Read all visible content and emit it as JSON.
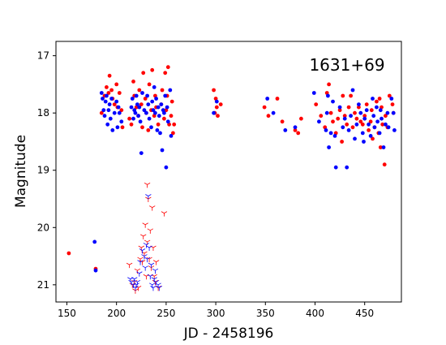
{
  "chart_data": {
    "type": "scatter",
    "title": "",
    "annotation": "1631+69",
    "xlabel": "JD - 2458196",
    "ylabel": "Magnitude",
    "xlim": [
      139,
      487
    ],
    "ylim": [
      21.3,
      16.75
    ],
    "y_inverted": true,
    "grid": false,
    "x_ticks": [
      150,
      200,
      250,
      300,
      350,
      400,
      450
    ],
    "y_ticks": [
      17,
      18,
      19,
      20,
      21
    ],
    "colors": {
      "red_series": "#ff0000",
      "blue_series": "#0000ff"
    },
    "series": [
      {
        "marker": "dot",
        "color": "#ff0000",
        "points": [
          [
            152,
            20.45
          ],
          [
            179,
            20.72
          ],
          [
            185,
            18.0
          ],
          [
            188,
            17.7
          ],
          [
            190,
            17.55
          ],
          [
            192,
            17.65
          ],
          [
            193,
            17.35
          ],
          [
            195,
            17.6
          ],
          [
            196,
            17.75
          ],
          [
            198,
            17.85
          ],
          [
            200,
            17.5
          ],
          [
            201,
            17.9
          ],
          [
            203,
            17.65
          ],
          [
            205,
            17.95
          ],
          [
            206,
            18.25
          ],
          [
            213,
            18.1
          ],
          [
            215,
            18.2
          ],
          [
            217,
            17.45
          ],
          [
            218,
            17.7
          ],
          [
            220,
            17.9
          ],
          [
            222,
            18.05
          ],
          [
            223,
            17.6
          ],
          [
            225,
            17.85
          ],
          [
            226,
            18.25
          ],
          [
            227,
            17.3
          ],
          [
            229,
            17.75
          ],
          [
            230,
            18.0
          ],
          [
            232,
            18.3
          ],
          [
            233,
            17.5
          ],
          [
            235,
            17.95
          ],
          [
            236,
            17.25
          ],
          [
            238,
            18.05
          ],
          [
            239,
            17.7
          ],
          [
            240,
            17.9
          ],
          [
            242,
            18.2
          ],
          [
            245,
            17.85
          ],
          [
            246,
            17.6
          ],
          [
            248,
            18.1
          ],
          [
            249,
            17.3
          ],
          [
            250,
            17.95
          ],
          [
            251,
            17.7
          ],
          [
            252,
            17.2
          ],
          [
            253,
            18.2
          ],
          [
            255,
            18.05
          ],
          [
            256,
            17.8
          ],
          [
            257,
            18.35
          ],
          [
            258,
            18.2
          ],
          [
            298,
            17.6
          ],
          [
            299,
            18.0
          ],
          [
            300,
            17.75
          ],
          [
            301,
            17.9
          ],
          [
            302,
            18.05
          ],
          [
            305,
            17.85
          ],
          [
            349,
            17.9
          ],
          [
            353,
            18.05
          ],
          [
            362,
            17.75
          ],
          [
            367,
            18.15
          ],
          [
            380,
            18.3
          ],
          [
            383,
            18.35
          ],
          [
            386,
            18.1
          ],
          [
            401,
            17.85
          ],
          [
            406,
            18.05
          ],
          [
            410,
            18.25
          ],
          [
            412,
            17.65
          ],
          [
            414,
            17.5
          ],
          [
            416,
            18.0
          ],
          [
            418,
            18.15
          ],
          [
            421,
            18.35
          ],
          [
            423,
            18.1
          ],
          [
            425,
            17.95
          ],
          [
            427,
            18.5
          ],
          [
            428,
            17.7
          ],
          [
            430,
            18.05
          ],
          [
            432,
            18.2
          ],
          [
            434,
            17.9
          ],
          [
            436,
            17.7
          ],
          [
            438,
            18.25
          ],
          [
            440,
            18.0
          ],
          [
            442,
            18.1
          ],
          [
            444,
            17.9
          ],
          [
            446,
            18.15
          ],
          [
            448,
            18.2
          ],
          [
            450,
            18.05
          ],
          [
            452,
            17.85
          ],
          [
            454,
            18.3
          ],
          [
            456,
            18.15
          ],
          [
            457,
            17.95
          ],
          [
            458,
            18.45
          ],
          [
            460,
            18.25
          ],
          [
            462,
            17.8
          ],
          [
            464,
            18.35
          ],
          [
            465,
            17.75
          ],
          [
            466,
            18.6
          ],
          [
            467,
            17.9
          ],
          [
            468,
            18.2
          ],
          [
            470,
            18.9
          ],
          [
            471,
            18.05
          ],
          [
            473,
            18.25
          ],
          [
            475,
            17.7
          ],
          [
            478,
            17.85
          ],
          [
            479,
            18.0
          ]
        ]
      },
      {
        "marker": "dot",
        "color": "#0000ff",
        "points": [
          [
            178,
            20.25
          ],
          [
            179,
            20.75
          ],
          [
            185,
            17.65
          ],
          [
            186,
            17.75
          ],
          [
            187,
            17.95
          ],
          [
            188,
            18.05
          ],
          [
            189,
            17.8
          ],
          [
            190,
            17.7
          ],
          [
            191,
            18.2
          ],
          [
            192,
            17.95
          ],
          [
            193,
            17.85
          ],
          [
            194,
            18.1
          ],
          [
            195,
            17.75
          ],
          [
            196,
            18.3
          ],
          [
            198,
            18.0
          ],
          [
            200,
            17.8
          ],
          [
            201,
            18.25
          ],
          [
            202,
            17.9
          ],
          [
            203,
            18.0
          ],
          [
            205,
            18.15
          ],
          [
            215,
            17.9
          ],
          [
            216,
            17.75
          ],
          [
            217,
            18.1
          ],
          [
            218,
            17.95
          ],
          [
            219,
            18.0
          ],
          [
            220,
            17.7
          ],
          [
            221,
            17.85
          ],
          [
            222,
            18.05
          ],
          [
            223,
            17.9
          ],
          [
            224,
            18.15
          ],
          [
            225,
            18.7
          ],
          [
            226,
            17.65
          ],
          [
            228,
            17.95
          ],
          [
            230,
            18.0
          ],
          [
            231,
            17.7
          ],
          [
            232,
            17.85
          ],
          [
            233,
            18.1
          ],
          [
            235,
            18.25
          ],
          [
            236,
            17.8
          ],
          [
            237,
            17.95
          ],
          [
            238,
            17.55
          ],
          [
            239,
            18.0
          ],
          [
            240,
            17.75
          ],
          [
            241,
            18.3
          ],
          [
            242,
            17.9
          ],
          [
            243,
            18.05
          ],
          [
            244,
            18.35
          ],
          [
            245,
            17.85
          ],
          [
            246,
            18.65
          ],
          [
            247,
            17.95
          ],
          [
            248,
            18.0
          ],
          [
            249,
            17.7
          ],
          [
            250,
            18.95
          ],
          [
            251,
            17.9
          ],
          [
            252,
            18.15
          ],
          [
            254,
            17.6
          ],
          [
            255,
            18.4
          ],
          [
            298,
            18.0
          ],
          [
            301,
            17.8
          ],
          [
            352,
            17.75
          ],
          [
            358,
            18.0
          ],
          [
            370,
            18.3
          ],
          [
            380,
            18.25
          ],
          [
            399,
            17.65
          ],
          [
            404,
            18.15
          ],
          [
            411,
            18.3
          ],
          [
            412,
            18.0
          ],
          [
            413,
            17.7
          ],
          [
            414,
            18.6
          ],
          [
            416,
            18.35
          ],
          [
            418,
            17.8
          ],
          [
            420,
            18.4
          ],
          [
            421,
            18.95
          ],
          [
            425,
            17.9
          ],
          [
            428,
            18.25
          ],
          [
            430,
            18.1
          ],
          [
            432,
            18.95
          ],
          [
            434,
            18.3
          ],
          [
            436,
            18.05
          ],
          [
            438,
            17.6
          ],
          [
            440,
            18.45
          ],
          [
            442,
            18.2
          ],
          [
            444,
            17.85
          ],
          [
            446,
            18.0
          ],
          [
            448,
            18.35
          ],
          [
            449,
            18.5
          ],
          [
            450,
            18.1
          ],
          [
            452,
            17.95
          ],
          [
            454,
            18.2
          ],
          [
            456,
            18.4
          ],
          [
            458,
            17.75
          ],
          [
            459,
            18.05
          ],
          [
            460,
            18.25
          ],
          [
            462,
            17.9
          ],
          [
            463,
            18.15
          ],
          [
            465,
            18.35
          ],
          [
            466,
            17.95
          ],
          [
            467,
            18.1
          ],
          [
            469,
            18.6
          ],
          [
            471,
            18.2
          ],
          [
            473,
            18.0
          ],
          [
            474,
            18.25
          ],
          [
            477,
            17.75
          ],
          [
            479,
            18.0
          ],
          [
            480,
            18.3
          ]
        ]
      },
      {
        "marker": "tri",
        "color": "#ff0000",
        "points": [
          [
            213,
            20.65
          ],
          [
            216,
            21.0
          ],
          [
            218,
            20.95
          ],
          [
            219,
            21.1
          ],
          [
            221,
            20.75
          ],
          [
            222,
            21.05
          ],
          [
            224,
            20.55
          ],
          [
            225,
            20.35
          ],
          [
            226,
            20.6
          ],
          [
            227,
            20.15
          ],
          [
            228,
            20.45
          ],
          [
            229,
            19.95
          ],
          [
            230,
            20.85
          ],
          [
            231,
            20.25
          ],
          [
            232,
            19.5
          ],
          [
            233,
            20.55
          ],
          [
            234,
            20.05
          ],
          [
            235,
            20.7
          ],
          [
            236,
            19.65
          ],
          [
            237,
            20.35
          ],
          [
            238,
            20.85
          ],
          [
            239,
            20.95
          ],
          [
            240,
            20.6
          ],
          [
            242,
            21.05
          ],
          [
            248,
            19.75
          ],
          [
            231,
            19.25
          ]
        ]
      },
      {
        "marker": "tri",
        "color": "#0000ff",
        "points": [
          [
            214,
            20.9
          ],
          [
            215,
            20.95
          ],
          [
            217,
            21.0
          ],
          [
            218,
            20.9
          ],
          [
            219,
            21.05
          ],
          [
            220,
            21.0
          ],
          [
            221,
            20.95
          ],
          [
            223,
            20.8
          ],
          [
            224,
            20.6
          ],
          [
            226,
            20.4
          ],
          [
            228,
            20.5
          ],
          [
            229,
            20.7
          ],
          [
            230,
            20.3
          ],
          [
            231,
            20.55
          ],
          [
            232,
            19.45
          ],
          [
            233,
            20.35
          ],
          [
            234,
            20.85
          ],
          [
            235,
            20.65
          ],
          [
            236,
            21.0
          ],
          [
            237,
            21.05
          ],
          [
            238,
            20.9
          ],
          [
            239,
            20.75
          ],
          [
            240,
            20.95
          ],
          [
            242,
            21.0
          ],
          [
            243,
            21.05
          ]
        ]
      }
    ]
  }
}
